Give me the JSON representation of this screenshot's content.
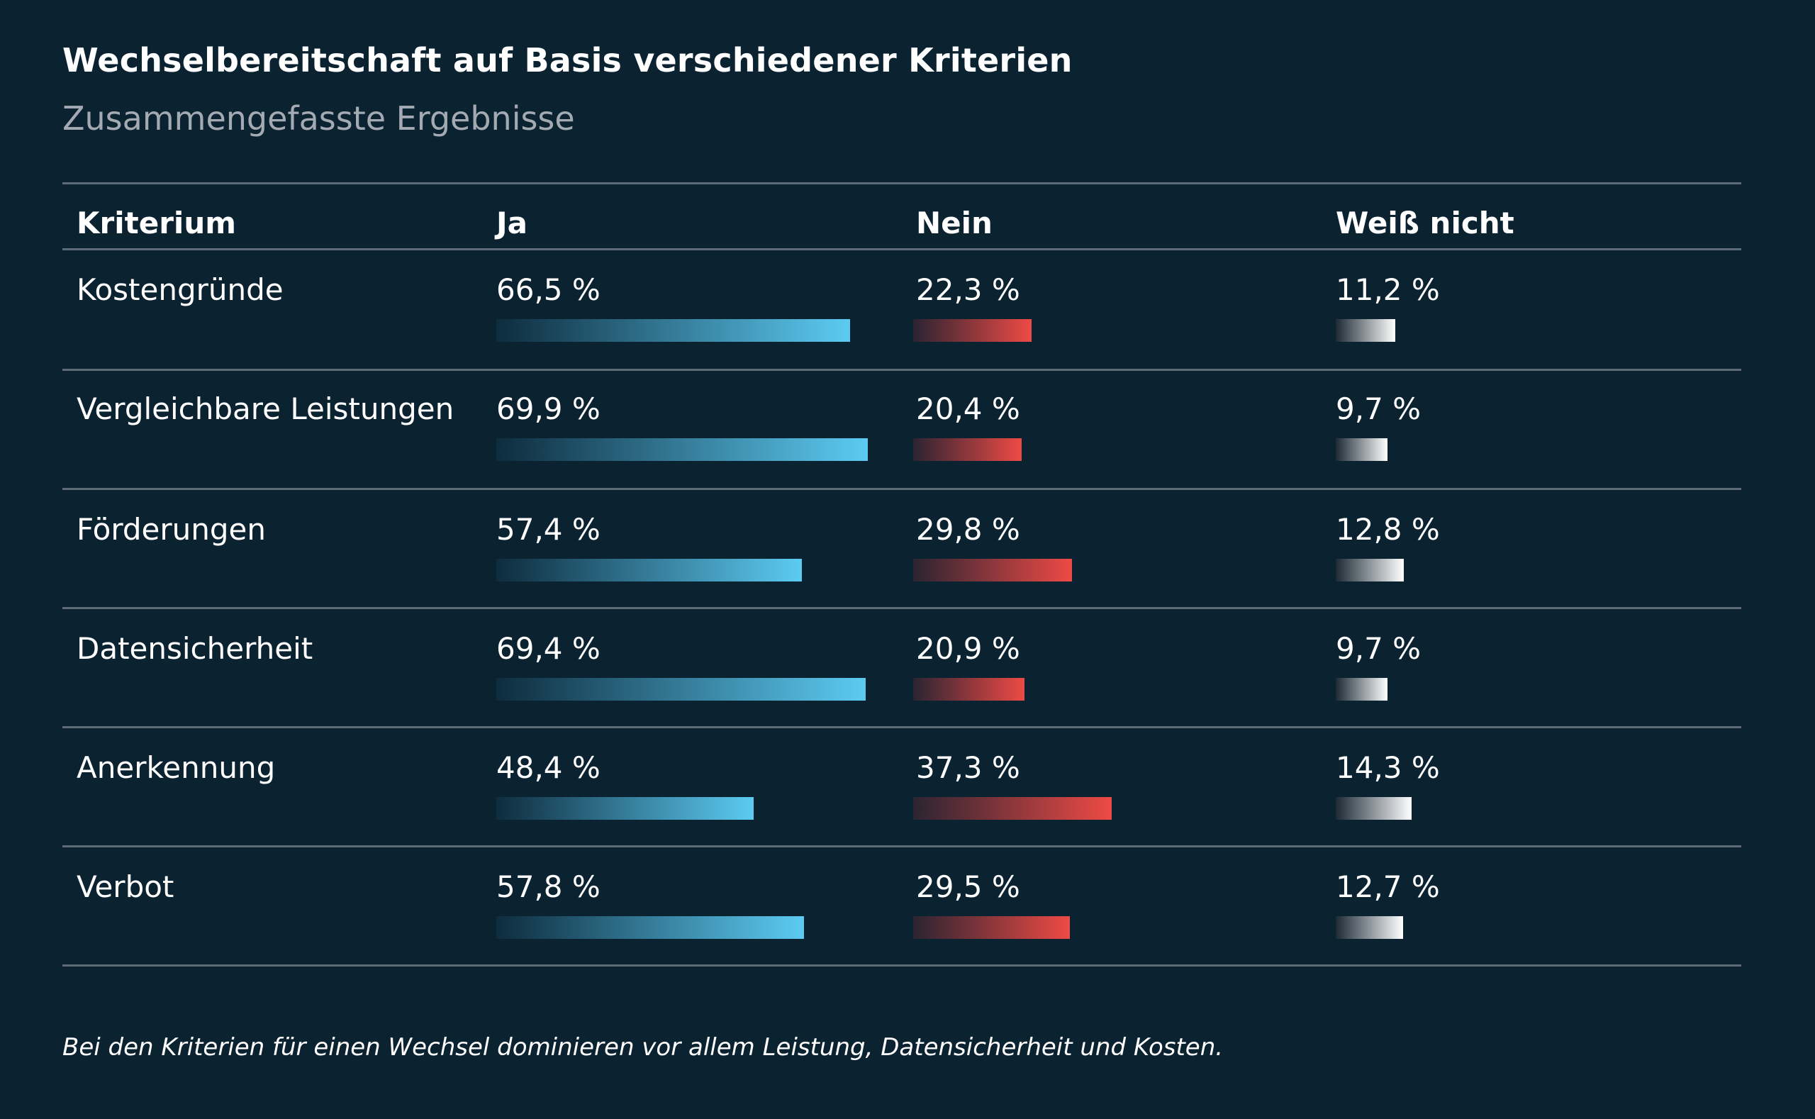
{
  "chart_data": {
    "type": "table",
    "title": "Wechselbereitschaft auf Basis verschiedener Kriterien",
    "subtitle": "Zusammengefasste Ergebnisse",
    "columns": [
      "Kriterium",
      "Ja",
      "Nein",
      "Weiß nicht"
    ],
    "unit": "%",
    "rows": [
      {
        "criterion": "Kostengründe",
        "ja": 66.5,
        "nein": 22.3,
        "weiss": 11.2,
        "ja_label": "66,5 %",
        "nein_label": "22,3 %",
        "weiss_label": "11,2 %"
      },
      {
        "criterion": "Vergleichbare Leistungen",
        "ja": 69.9,
        "nein": 20.4,
        "weiss": 9.7,
        "ja_label": "69,9 %",
        "nein_label": "20,4 %",
        "weiss_label": "9,7 %"
      },
      {
        "criterion": "Förderungen",
        "ja": 57.4,
        "nein": 29.8,
        "weiss": 12.8,
        "ja_label": "57,4 %",
        "nein_label": "29,8 %",
        "weiss_label": "12,8 %"
      },
      {
        "criterion": "Datensicherheit",
        "ja": 69.4,
        "nein": 20.9,
        "weiss": 9.7,
        "ja_label": "69,4 %",
        "nein_label": "20,9 %",
        "weiss_label": "9,7 %"
      },
      {
        "criterion": "Anerkennung",
        "ja": 48.4,
        "nein": 37.3,
        "weiss": 14.3,
        "ja_label": "48,4 %",
        "nein_label": "37,3 %",
        "weiss_label": "14,3 %"
      },
      {
        "criterion": "Verbot",
        "ja": 57.8,
        "nein": 29.5,
        "weiss": 12.7,
        "ja_label": "57,8 %",
        "nein_label": "29,5 %",
        "weiss_label": "12,7 %"
      }
    ],
    "colors": {
      "ja": "#5ccbf2",
      "nein": "#ee4a45",
      "weiss": "#ffffff",
      "background": "#0b2231"
    }
  },
  "footnote": "Bei den Kriterien für einen Wechsel dominieren vor allem Leistung, Datensicherheit und Kosten."
}
